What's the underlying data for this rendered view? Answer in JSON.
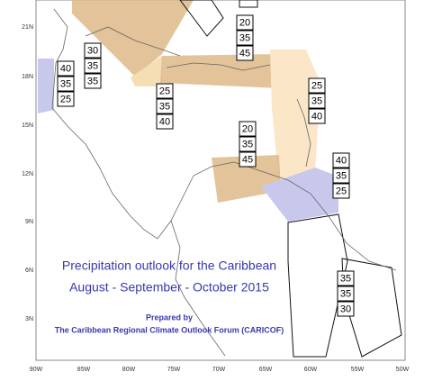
{
  "title": "Precipitation outlook for the Caribbean",
  "subtitle": "August - September - October 2015",
  "prepared_by": "Prepared by",
  "forum": "The Caribbean Regional Climate Outlook Forum (CARICOF)",
  "lat_labels": [
    "21N",
    "18N",
    "15N",
    "12N",
    "9N",
    "6N",
    "3N"
  ],
  "lon_labels": [
    "90W",
    "85W",
    "80W",
    "75W",
    "70W",
    "65W",
    "60W",
    "55W",
    "50W"
  ],
  "forecasts": [
    {
      "values": [
        "20",
        "35",
        "45"
      ]
    },
    {
      "values": [
        "30",
        "35",
        "35"
      ]
    },
    {
      "values": [
        "40",
        "35",
        "25"
      ]
    },
    {
      "values": [
        "25",
        "35",
        "40"
      ]
    },
    {
      "values": [
        "25",
        "35",
        "40"
      ]
    },
    {
      "values": [
        "20",
        "35",
        "45"
      ]
    },
    {
      "values": [
        "40",
        "35",
        "25"
      ]
    },
    {
      "values": [
        "35",
        "35",
        "30"
      ]
    }
  ]
}
